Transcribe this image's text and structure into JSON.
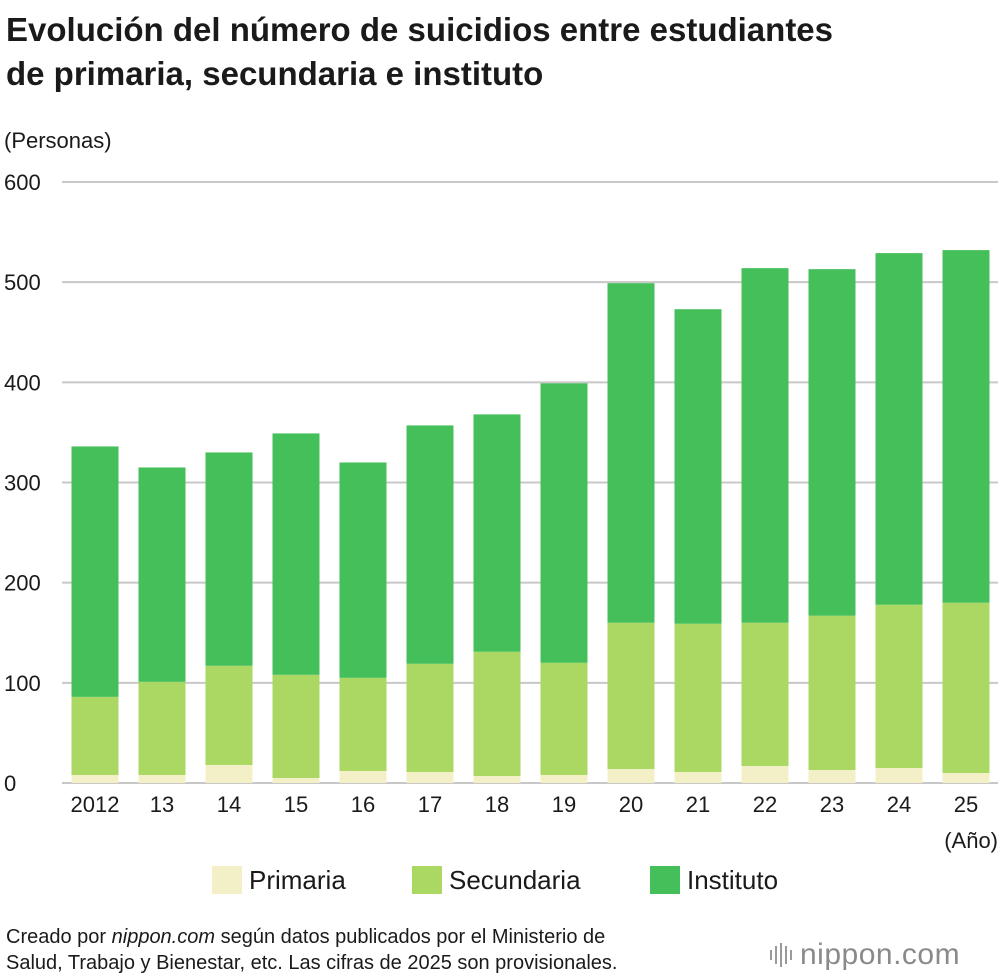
{
  "title_line1": "Evolución del número de suicidios entre estudiantes",
  "title_line2": "de primaria, secundaria e instituto",
  "footer": {
    "prefix": "Creado por ",
    "site": "nippon.com",
    "rest_line1": " según datos publicados por el Ministerio de",
    "line2": "Salud, Trabajo y Bienestar, etc. Las cifras de 2025 son provisionales."
  },
  "logo_text": "nippon.com",
  "colors": {
    "primaria": "#f3f0c8",
    "secundaria": "#abd862",
    "instituto": "#45bf5a",
    "grid": "#c8c8c8"
  },
  "chart_data": {
    "type": "bar",
    "stacked": true,
    "ylabel": "(Personas)",
    "xunit": "(Año)",
    "ylim": [
      0,
      600
    ],
    "yticks": [
      0,
      100,
      200,
      300,
      400,
      500,
      600
    ],
    "categories": [
      "2012",
      "13",
      "14",
      "15",
      "16",
      "17",
      "18",
      "19",
      "20",
      "21",
      "22",
      "23",
      "24",
      "25"
    ],
    "series": [
      {
        "name": "Primaria",
        "color_key": "primaria",
        "values": [
          8,
          8,
          18,
          5,
          12,
          11,
          7,
          8,
          14,
          11,
          17,
          13,
          15,
          10
        ]
      },
      {
        "name": "Secundaria",
        "color_key": "secundaria",
        "values": [
          78,
          93,
          99,
          103,
          93,
          108,
          124,
          112,
          146,
          148,
          143,
          154,
          163,
          170
        ]
      },
      {
        "name": "Instituto",
        "color_key": "instituto",
        "values": [
          250,
          214,
          213,
          241,
          215,
          238,
          237,
          279,
          339,
          314,
          354,
          346,
          351,
          352
        ]
      }
    ],
    "legend_position": "bottom"
  }
}
